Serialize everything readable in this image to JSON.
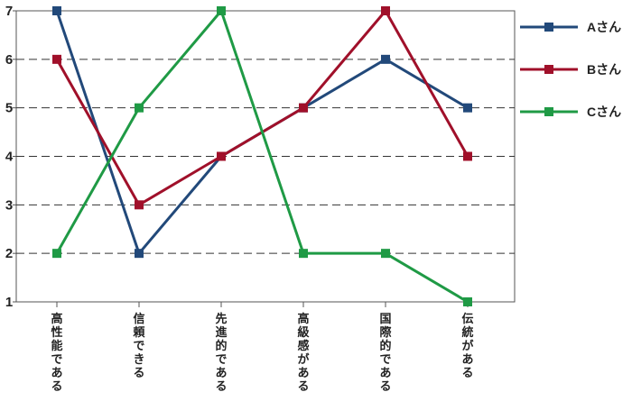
{
  "chart_data": {
    "type": "line",
    "categories": [
      "高性能である",
      "信頼できる",
      "先進的である",
      "高級感がある",
      "国際的である",
      "伝統がある"
    ],
    "ylim": [
      1,
      7
    ],
    "yticks": [
      "1",
      "2",
      "3",
      "4",
      "5",
      "6",
      "7"
    ],
    "grid": "dashed horizontal",
    "legend_position": "right",
    "series": [
      {
        "name": "Aさん",
        "color": "#22497a",
        "values": [
          7,
          2,
          4,
          5,
          6,
          5
        ]
      },
      {
        "name": "Bさん",
        "color": "#a0102a",
        "values": [
          6,
          3,
          4,
          5,
          7,
          4
        ]
      },
      {
        "name": "Cさん",
        "color": "#1f9a45",
        "values": [
          2,
          5,
          7,
          2,
          2,
          1
        ]
      }
    ]
  }
}
